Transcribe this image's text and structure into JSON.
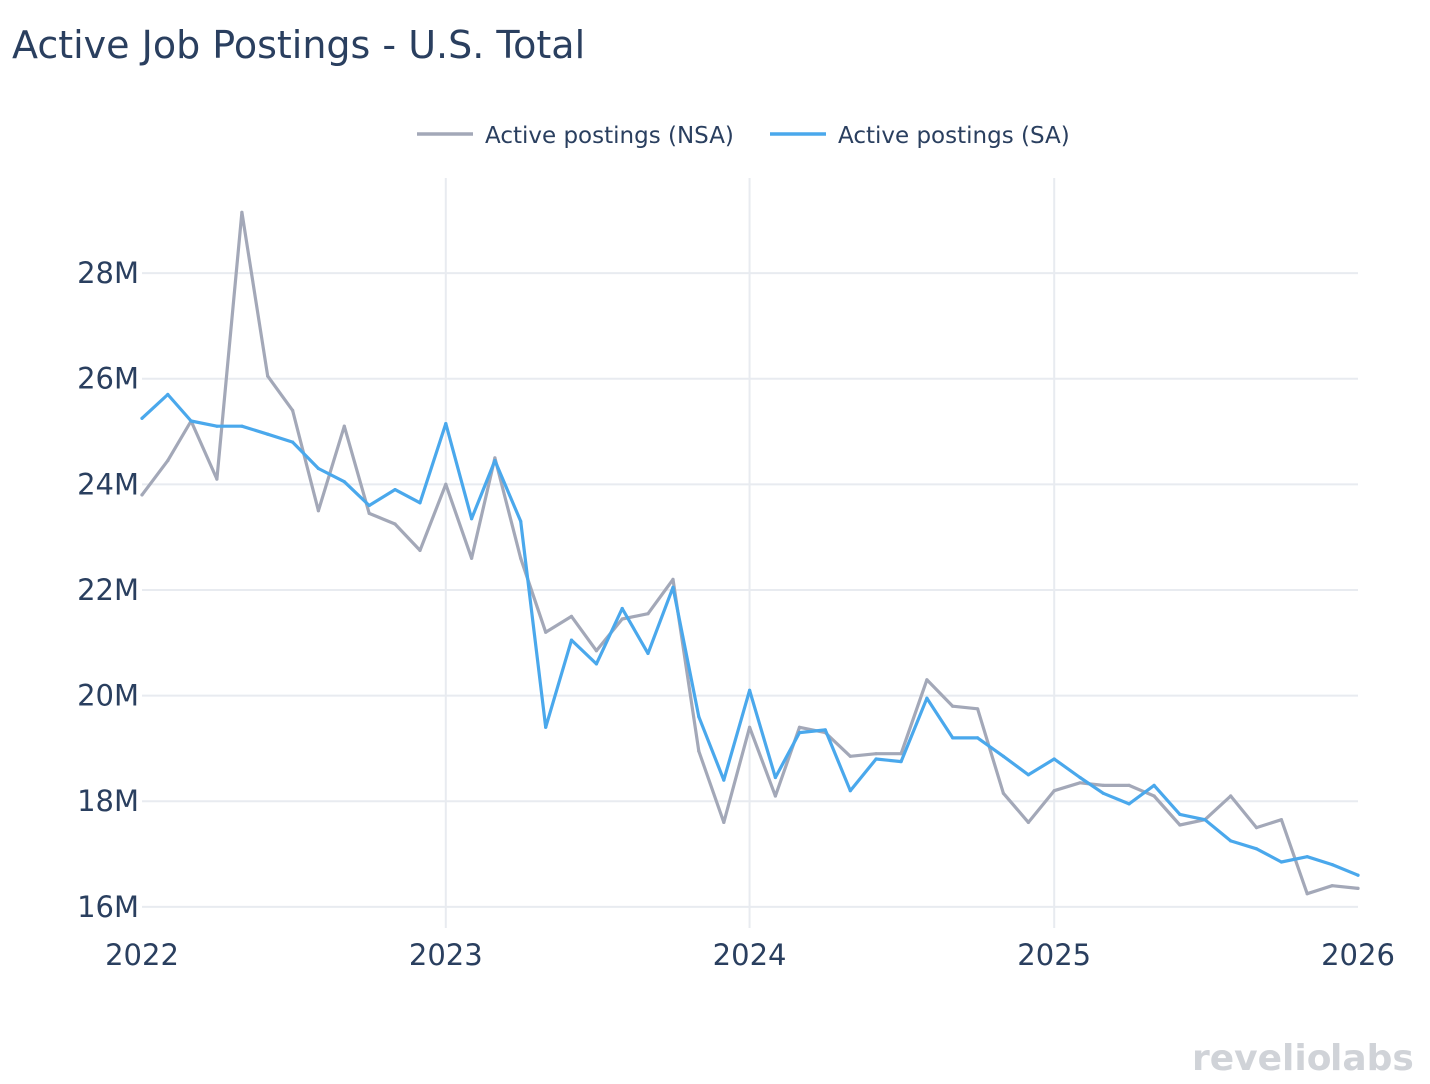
{
  "colors": {
    "nsa": "#a3a8b8",
    "sa": "#4aa8ec",
    "grid": "#e8ebf0",
    "text": "#2a3f5f",
    "logo": "#d0d3d8"
  },
  "logo": {
    "text_left": "revelio",
    "text_right": "labs"
  },
  "chart_data": {
    "type": "line",
    "title": "Active Job Postings - U.S. Total",
    "xlabel": "",
    "ylabel": "",
    "legend_position": "top-center",
    "grid": true,
    "xlim": [
      "2022-01-01",
      "2026-01-01"
    ],
    "ylim": [
      15.6,
      29.8
    ],
    "x_ticks": [
      {
        "date": "2022-01-01",
        "label": "2022"
      },
      {
        "date": "2023-01-01",
        "label": "2023"
      },
      {
        "date": "2024-01-01",
        "label": "2024"
      },
      {
        "date": "2025-01-01",
        "label": "2025"
      },
      {
        "date": "2026-01-01",
        "label": "2026"
      }
    ],
    "y_ticks": [
      {
        "value": 16,
        "label": "16M"
      },
      {
        "value": 18,
        "label": "18M"
      },
      {
        "value": 20,
        "label": "20M"
      },
      {
        "value": 22,
        "label": "22M"
      },
      {
        "value": 24,
        "label": "24M"
      },
      {
        "value": 26,
        "label": "26M"
      },
      {
        "value": 28,
        "label": "28M"
      }
    ],
    "x": [
      "2022-01-01",
      "2022-02-01",
      "2022-03-01",
      "2022-04-01",
      "2022-05-01",
      "2022-06-01",
      "2022-07-01",
      "2022-08-01",
      "2022-09-01",
      "2022-10-01",
      "2022-11-01",
      "2022-12-01",
      "2023-01-01",
      "2023-02-01",
      "2023-03-01",
      "2023-04-01",
      "2023-05-01",
      "2023-06-01",
      "2023-07-01",
      "2023-08-01",
      "2023-09-01",
      "2023-10-01",
      "2023-11-01",
      "2023-12-01",
      "2024-01-01",
      "2024-02-01",
      "2024-03-01",
      "2024-04-01",
      "2024-05-01",
      "2024-06-01",
      "2024-07-01",
      "2024-08-01",
      "2024-09-01",
      "2024-10-01",
      "2024-11-01",
      "2024-12-01",
      "2025-01-01",
      "2025-02-01",
      "2025-03-01",
      "2025-04-01",
      "2025-05-01",
      "2025-06-01",
      "2025-07-01",
      "2025-08-01",
      "2025-09-01",
      "2025-10-01",
      "2025-11-01",
      "2025-12-01",
      "2026-01-01"
    ],
    "series": [
      {
        "name": "Active postings (NSA)",
        "color": "#a3a8b8",
        "values": [
          23.8,
          24.45,
          25.2,
          24.1,
          29.15,
          26.05,
          25.4,
          23.5,
          25.1,
          23.45,
          23.25,
          22.75,
          24.0,
          22.6,
          24.5,
          22.6,
          21.2,
          21.5,
          20.85,
          21.45,
          21.55,
          22.2,
          18.95,
          17.6,
          19.4,
          18.1,
          19.4,
          19.3,
          18.85,
          18.9,
          18.9,
          20.3,
          19.8,
          19.75,
          18.15,
          17.6,
          18.2,
          18.35,
          18.3,
          18.3,
          18.1,
          17.55,
          17.65,
          18.1,
          17.5,
          17.65,
          16.25,
          16.4,
          16.35
        ]
      },
      {
        "name": "Active postings (SA)",
        "color": "#4aa8ec",
        "values": [
          25.25,
          25.7,
          25.2,
          25.1,
          25.1,
          24.95,
          24.8,
          24.3,
          24.05,
          23.6,
          23.9,
          23.65,
          25.15,
          23.35,
          24.45,
          23.3,
          19.4,
          21.05,
          20.6,
          21.65,
          20.8,
          22.05,
          19.6,
          18.4,
          20.1,
          18.45,
          19.3,
          19.35,
          18.2,
          18.8,
          18.75,
          19.95,
          19.2,
          19.2,
          18.85,
          18.5,
          18.8,
          18.45,
          18.15,
          17.95,
          18.3,
          17.75,
          17.65,
          17.25,
          17.1,
          16.85,
          16.95,
          16.8,
          16.6
        ]
      }
    ]
  }
}
